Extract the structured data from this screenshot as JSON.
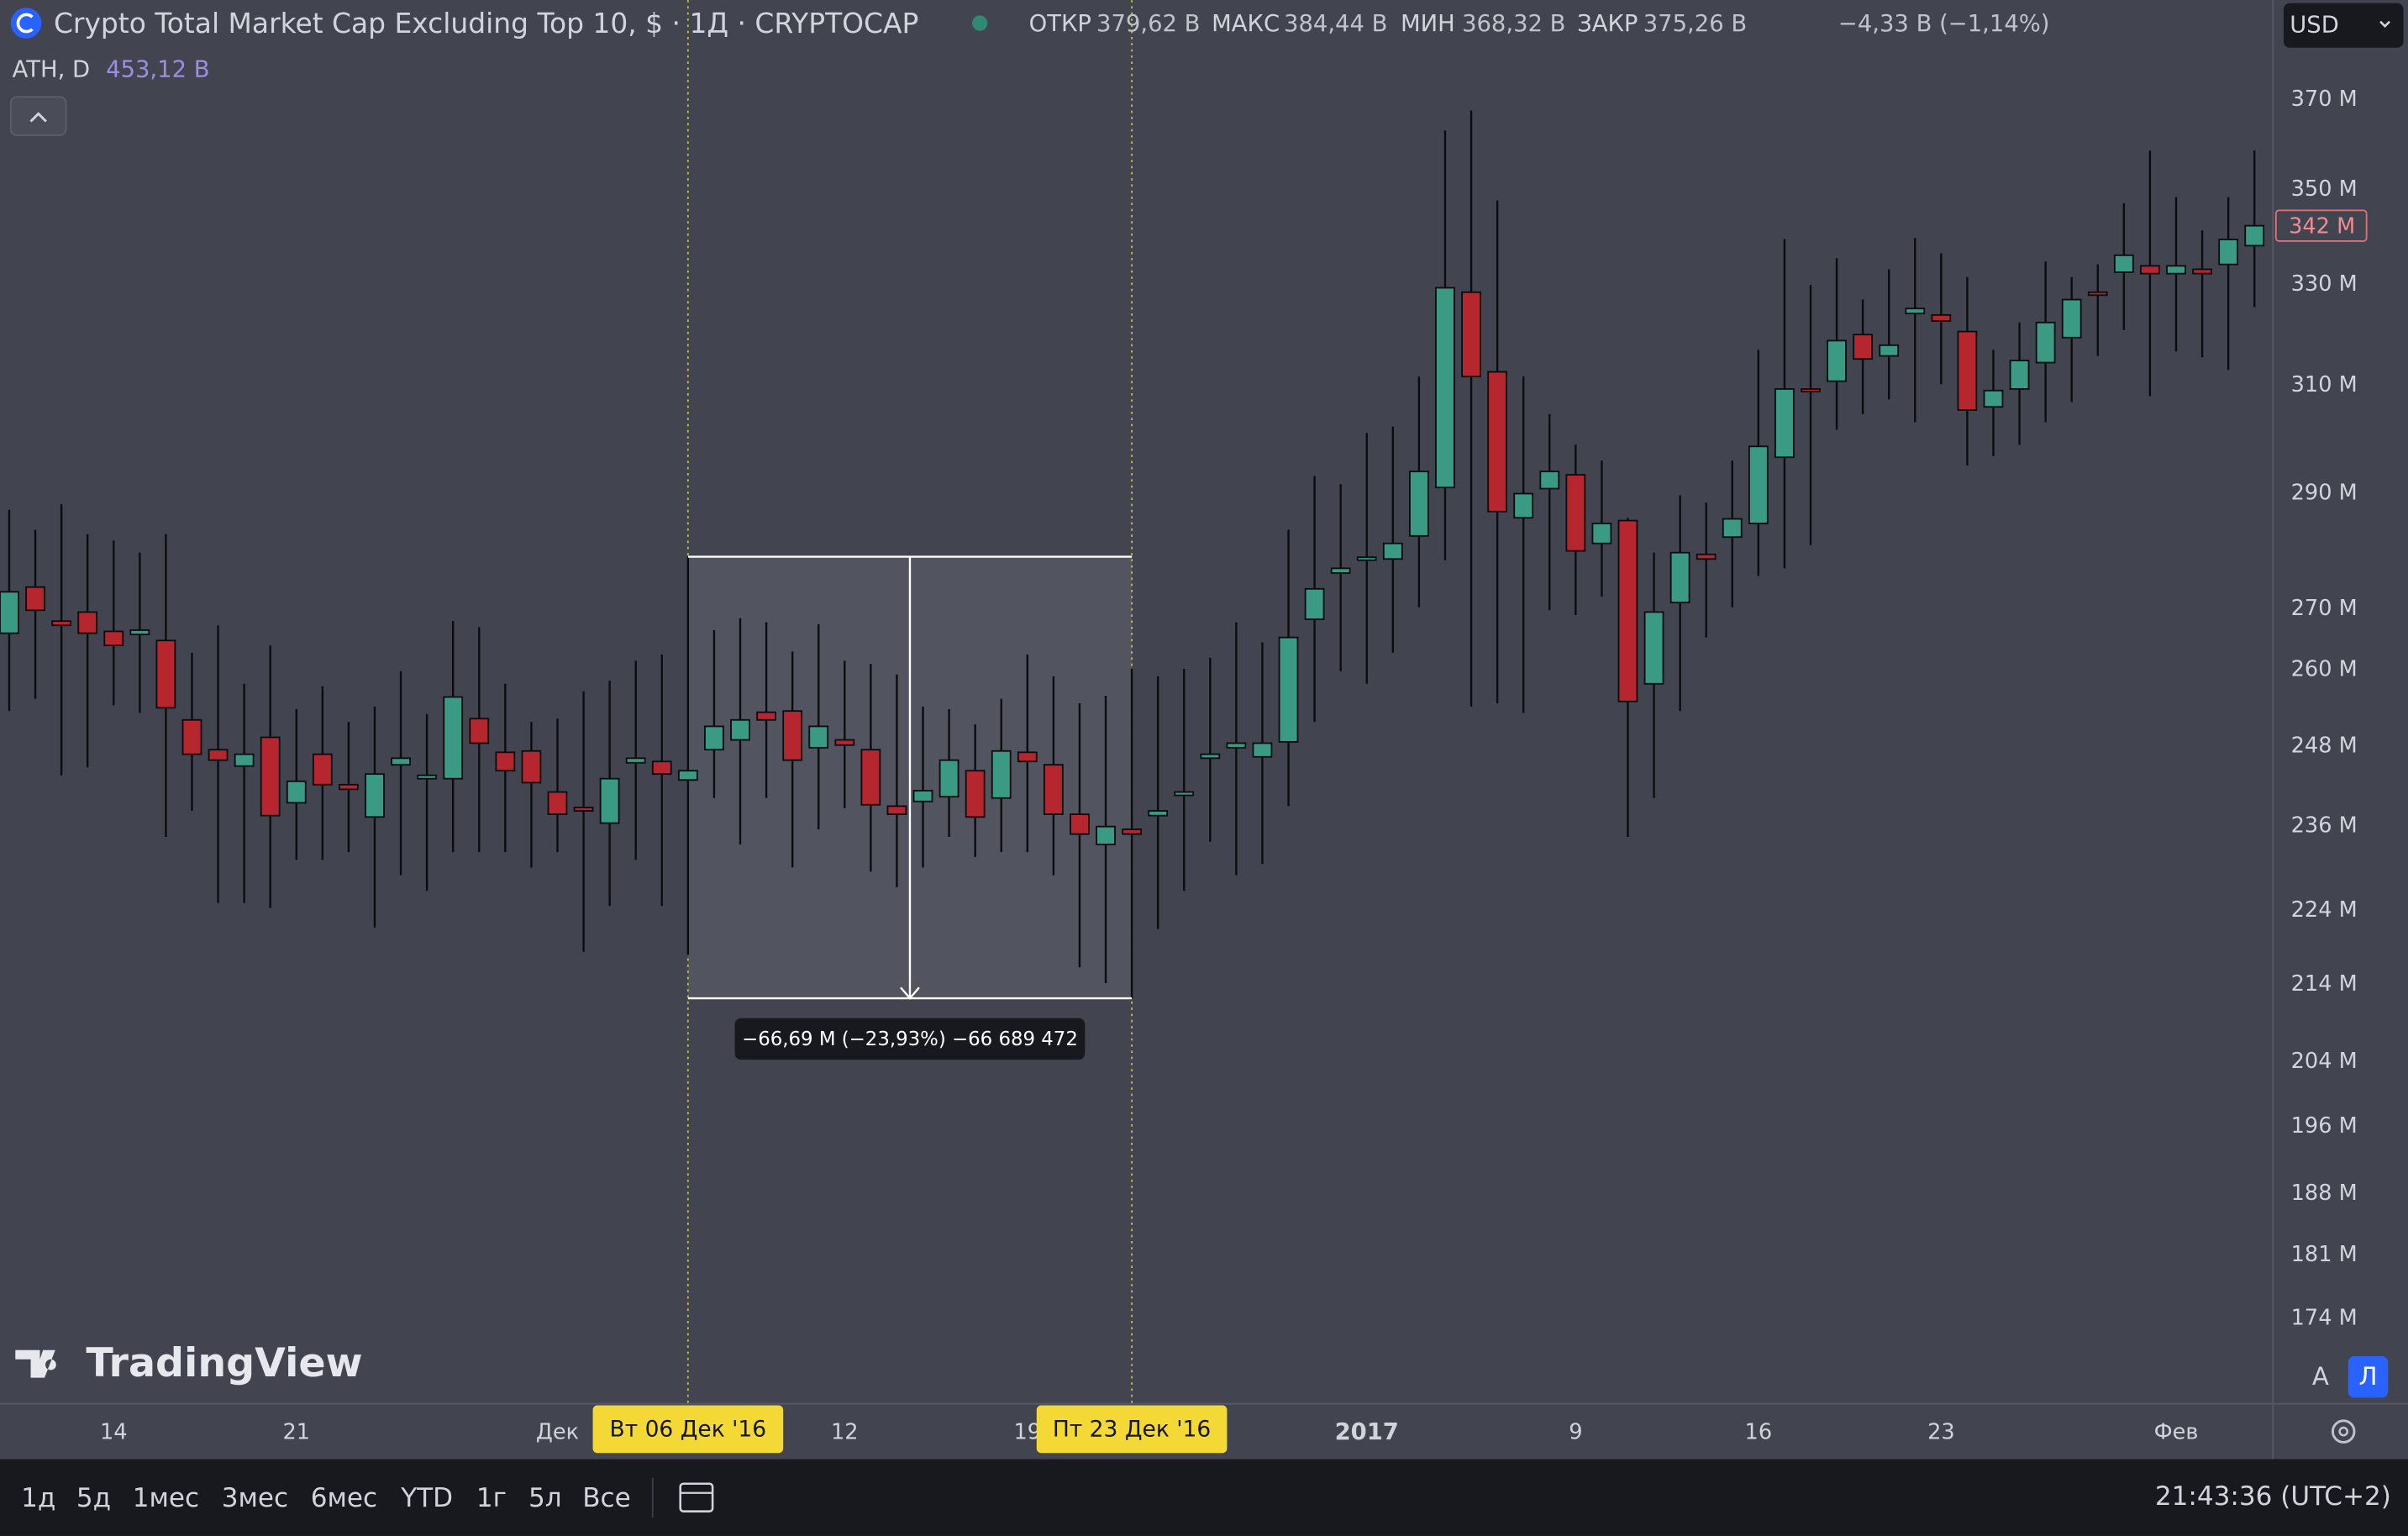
{
  "header": {
    "title": "Crypto Total Market Cap Excluding Top 10, $ · 1Д · CRYPTOCAP",
    "ohlc": [
      {
        "label": "ОТКР",
        "value": "379,62 B"
      },
      {
        "label": "МАКС",
        "value": "384,44 B"
      },
      {
        "label": "МИН",
        "value": "368,32 B"
      },
      {
        "label": "ЗАКР",
        "value": "375,26 B"
      }
    ],
    "change": "−4,33 B (−1,14%)",
    "ath_label": "ATH, D",
    "ath_value": "453,12 B"
  },
  "currency": "USD",
  "logo": "TradingView",
  "scale_buttons": [
    "A",
    "Л"
  ],
  "toolbar": {
    "ranges": [
      "1д",
      "5д",
      "1мес",
      "3мес",
      "6мес",
      "YTD",
      "1г",
      "5л",
      "Все"
    ],
    "clock": "21:43:36 (UTC+2)"
  },
  "chart_data": {
    "type": "candlestick",
    "log_scale": true,
    "grid": false,
    "up_color": "#3a9a83",
    "down_color": "#b5262e",
    "x": [
      "2016-11-10",
      "2016-11-11",
      "2016-11-12",
      "2016-11-13",
      "2016-11-14",
      "2016-11-15",
      "2016-11-16",
      "2016-11-17",
      "2016-11-18",
      "2016-11-19",
      "2016-11-20",
      "2016-11-21",
      "2016-11-22",
      "2016-11-23",
      "2016-11-24",
      "2016-11-25",
      "2016-11-26",
      "2016-11-27",
      "2016-11-28",
      "2016-11-29",
      "2016-11-30",
      "2016-12-01",
      "2016-12-02",
      "2016-12-03",
      "2016-12-04",
      "2016-12-05",
      "2016-12-06",
      "2016-12-07",
      "2016-12-08",
      "2016-12-09",
      "2016-12-10",
      "2016-12-11",
      "2016-12-12",
      "2016-12-13",
      "2016-12-14",
      "2016-12-15",
      "2016-12-16",
      "2016-12-17",
      "2016-12-18",
      "2016-12-19",
      "2016-12-20",
      "2016-12-21",
      "2016-12-22",
      "2016-12-23",
      "2016-12-24",
      "2016-12-25",
      "2016-12-26",
      "2016-12-27",
      "2016-12-28",
      "2016-12-29",
      "2016-12-30",
      "2016-12-31",
      "2017-01-01",
      "2017-01-02",
      "2017-01-03",
      "2017-01-04",
      "2017-01-05",
      "2017-01-06",
      "2017-01-07",
      "2017-01-08",
      "2017-01-09",
      "2017-01-10",
      "2017-01-11",
      "2017-01-12",
      "2017-01-13",
      "2017-01-14",
      "2017-01-15",
      "2017-01-16",
      "2017-01-17",
      "2017-01-18",
      "2017-01-19",
      "2017-01-20",
      "2017-01-21",
      "2017-01-22",
      "2017-01-23",
      "2017-01-24",
      "2017-01-25",
      "2017-01-26",
      "2017-01-27",
      "2017-01-28",
      "2017-01-29",
      "2017-01-30",
      "2017-01-31",
      "2017-02-01",
      "2017-02-02",
      "2017-02-03",
      "2017-02-04"
    ],
    "open": [
      266,
      273.7,
      268,
      269.5,
      266.3,
      265.8,
      264.8,
      252.1,
      247.5,
      245,
      249.4,
      239.5,
      246.8,
      242.2,
      237.4,
      245.2,
      243.1,
      243.1,
      252.3,
      247.1,
      247.3,
      241.1,
      238.8,
      236.5,
      245.5,
      245.7,
      242.9,
      247.5,
      249,
      253.3,
      253.5,
      247.8,
      249,
      247.5,
      239,
      239.7,
      240.4,
      244.3,
      240.2,
      247.1,
      245.2,
      237.8,
      233.4,
      235.6,
      237.6,
      240.6,
      246.2,
      247.8,
      246.4,
      248.7,
      268.3,
      276.1,
      278.3,
      278.5,
      282.5,
      291.1,
      328.5,
      312.7,
      285.7,
      290.9,
      293.4,
      281.2,
      285.2,
      257.8,
      271.1,
      279.3,
      282.3,
      284.7,
      296.6,
      309.4,
      310.9,
      320,
      315.8,
      324.2,
      323.9,
      320.6,
      306,
      309.4,
      314.5,
      319.4,
      328.5,
      332.6,
      333.9,
      332.3,
      333.2,
      334.2,
      338.1
    ],
    "high": [
      287.1,
      283.6,
      288.1,
      282.8,
      281.7,
      279.6,
      282.8,
      262.8,
      267.3,
      257.8,
      264,
      253.8,
      257.4,
      251.8,
      254.2,
      259.8,
      253,
      268,
      267,
      257.8,
      251.8,
      252.3,
      256.6,
      258.3,
      261.5,
      262.5,
      279,
      266.5,
      268.5,
      267.8,
      263,
      267.5,
      261.5,
      261,
      259.3,
      254.2,
      253.8,
      251.4,
      255.4,
      262.5,
      259,
      254.7,
      255.9,
      260.2,
      259,
      260.2,
      262,
      267.8,
      264.5,
      283.6,
      293.2,
      291.7,
      301.1,
      302.3,
      311.8,
      363.1,
      367.6,
      347.7,
      311.8,
      304.6,
      298.9,
      296,
      285.7,
      279.6,
      289.7,
      288.4,
      296,
      317,
      339.5,
      330,
      335.5,
      327,
      333.2,
      339.7,
      336.5,
      331.6,
      317,
      322.4,
      334.8,
      331.6,
      334.2,
      347.1,
      358.6,
      348.4,
      341.3,
      348.4,
      358.6
    ],
    "low": [
      253.5,
      255.4,
      243.6,
      244.8,
      254.4,
      253.2,
      234.5,
      238.3,
      225.1,
      225.1,
      224.4,
      231.2,
      231.2,
      232.3,
      221.7,
      229,
      226.8,
      232.3,
      232.3,
      232.3,
      230.1,
      232.3,
      218.4,
      224.7,
      231.2,
      224.7,
      218,
      240.2,
      233.4,
      240.2,
      230.1,
      235.6,
      238.7,
      229.5,
      227.3,
      230.1,
      234.5,
      231.6,
      232.3,
      232.3,
      229,
      216.3,
      214.2,
      212.2,
      221.5,
      226.8,
      233.8,
      229,
      230.6,
      239,
      251.8,
      259.8,
      257.8,
      262.8,
      270.3,
      278.3,
      254.2,
      254.7,
      253.2,
      269.8,
      269,
      272.1,
      234.5,
      240.2,
      253.5,
      265.3,
      270.3,
      275.6,
      276.9,
      280.9,
      301.7,
      304.6,
      307.4,
      303.1,
      310.3,
      295.1,
      296.8,
      298.9,
      303.1,
      306.9,
      315.8,
      320.9,
      308,
      316.7,
      315.5,
      313.1,
      325.5
    ],
    "close": [
      272.9,
      269.8,
      267.3,
      266,
      264,
      266.5,
      254,
      246.8,
      245.9,
      246.8,
      237.6,
      242.7,
      242.2,
      241.5,
      243.8,
      246.2,
      243.6,
      255.7,
      248.5,
      244.3,
      242.5,
      237.8,
      238.3,
      243.1,
      246.2,
      243.8,
      244.3,
      251.1,
      252.1,
      252.1,
      245.9,
      251.1,
      248.2,
      239.2,
      237.8,
      241.3,
      245.9,
      237.4,
      247.3,
      245.7,
      237.8,
      234.9,
      236,
      234.9,
      238.3,
      241.1,
      246.8,
      248.5,
      248.5,
      265.3,
      273.4,
      276.9,
      278.8,
      281.2,
      294,
      329.4,
      311.8,
      286.8,
      290,
      294,
      279.9,
      284.7,
      255,
      269.5,
      279.6,
      278.5,
      285.5,
      298.6,
      309.4,
      308.9,
      318.8,
      315.2,
      317.9,
      325.2,
      322.7,
      305.4,
      309.1,
      314.9,
      322.4,
      327,
      327.9,
      336.1,
      332.3,
      333.9,
      332.3,
      339.4,
      342.3
    ],
    "ylim": [
      165.1,
      393.6
    ],
    "yticks": [
      {
        "value": 370,
        "label": "370 M"
      },
      {
        "value": 350,
        "label": "350 M"
      },
      {
        "value": 330,
        "label": "330 M"
      },
      {
        "value": 310,
        "label": "310 M"
      },
      {
        "value": 290,
        "label": "290 M"
      },
      {
        "value": 270,
        "label": "270 M"
      },
      {
        "value": 260,
        "label": "260 M"
      },
      {
        "value": 248,
        "label": "248 M"
      },
      {
        "value": 236,
        "label": "236 M"
      },
      {
        "value": 224,
        "label": "224 M"
      },
      {
        "value": 214,
        "label": "214 M"
      },
      {
        "value": 204,
        "label": "204 M"
      },
      {
        "value": 196,
        "label": "196 M"
      },
      {
        "value": 188,
        "label": "188 M"
      },
      {
        "value": 181,
        "label": "181 M"
      },
      {
        "value": 174,
        "label": "174 M"
      }
    ],
    "xticks": [
      {
        "value": "2016-11-14",
        "label": "14"
      },
      {
        "value": "2016-11-21",
        "label": "21"
      },
      {
        "value": "2016-12-01",
        "label": "Дек"
      },
      {
        "value": "2016-12-12",
        "label": "12"
      },
      {
        "value": "2016-12-19",
        "label": "19"
      },
      {
        "value": "2017-01-01",
        "label": "2017"
      },
      {
        "value": "2017-01-09",
        "label": "9"
      },
      {
        "value": "2017-01-16",
        "label": "16"
      },
      {
        "value": "2017-01-23",
        "label": "23"
      },
      {
        "value": "2017-02-01",
        "label": "Фев"
      }
    ],
    "last_label": "342 M",
    "measure": {
      "start": "2016-12-06",
      "end": "2016-12-23",
      "from": 278.9,
      "to": 212.21,
      "label": "−66,69 M (−23,93%) −66 689 472",
      "start_label": "Вт 06 Дек '16",
      "end_label": "Пт 23 Дек '16"
    }
  }
}
